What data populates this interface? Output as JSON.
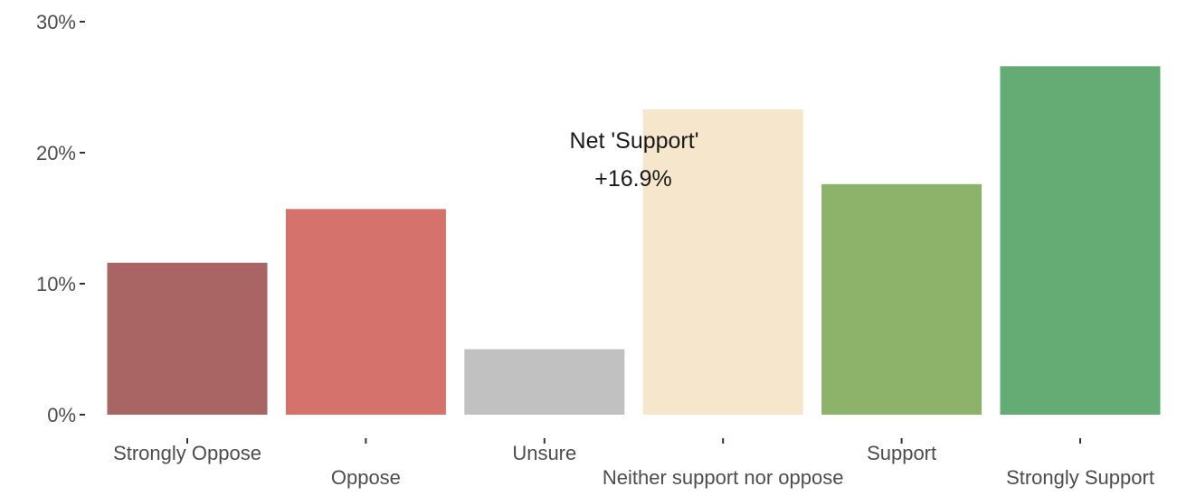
{
  "chart_data": {
    "type": "bar",
    "categories": [
      "Strongly Oppose",
      "Oppose",
      "Unsure",
      "Neither support nor oppose",
      "Support",
      "Strongly Support"
    ],
    "values": [
      11.6,
      15.7,
      5.0,
      23.3,
      17.6,
      26.6
    ],
    "colors": [
      "#a96563",
      "#d5726c",
      "#c1c1c1",
      "#f6e6cb",
      "#8db36a",
      "#64ab74"
    ],
    "ylim": [
      0,
      30
    ],
    "yticks": [
      0,
      10,
      20,
      30
    ],
    "ytick_labels": [
      "0%",
      "10%",
      "20%",
      "30%"
    ],
    "title": "",
    "xlabel": "",
    "ylabel": "",
    "grid": false,
    "legend": "none",
    "annotation": {
      "line1": "Net 'Support'",
      "line2": "+16.9%"
    }
  }
}
